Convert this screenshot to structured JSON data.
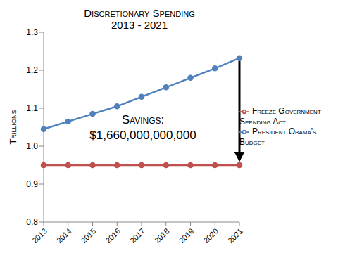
{
  "chart_data": {
    "type": "line",
    "title": [
      "Discretionary Spending",
      "2013 - 2021"
    ],
    "y_label": "Trillions",
    "categories": [
      "2013",
      "2014",
      "2015",
      "2016",
      "2017",
      "2018",
      "2019",
      "2020",
      "2021"
    ],
    "series": [
      {
        "name": "President Obama's Budget",
        "color": "#4f81bd",
        "marker": "circle",
        "values": [
          1.045,
          1.065,
          1.085,
          1.105,
          1.13,
          1.155,
          1.18,
          1.205,
          1.232
        ]
      },
      {
        "name": "Freeze Government Spending Act",
        "color": "#c0504d",
        "marker": "circle",
        "values": [
          0.95,
          0.95,
          0.95,
          0.95,
          0.95,
          0.95,
          0.95,
          0.95,
          0.95
        ]
      }
    ],
    "ylim": [
      0.8,
      1.3
    ],
    "yticks": [
      0.8,
      0.9,
      {
        "value": 1,
        "label": "1.0"
      },
      1.1,
      1.2,
      1.3
    ],
    "annotation": [
      "Savings:",
      "$1,660,000,000,000"
    ],
    "legend": "right",
    "grid": false
  }
}
